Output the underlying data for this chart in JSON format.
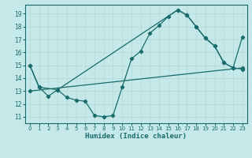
{
  "xlabel": "Humidex (Indice chaleur)",
  "bg_color": "#c5e8e8",
  "line_color": "#1a6b6b",
  "grid_color": "#b0d8d8",
  "xlim": [
    -0.5,
    23.5
  ],
  "ylim": [
    10.5,
    19.7
  ],
  "yticks": [
    11,
    12,
    13,
    14,
    15,
    16,
    17,
    18,
    19
  ],
  "xticks": [
    0,
    1,
    2,
    3,
    4,
    5,
    6,
    7,
    8,
    9,
    10,
    11,
    12,
    13,
    14,
    15,
    16,
    17,
    18,
    19,
    20,
    21,
    22,
    23
  ],
  "line1_x": [
    0,
    1,
    2,
    3,
    4,
    5,
    6,
    7,
    8,
    9,
    10,
    11,
    12,
    13,
    14,
    15,
    16,
    17,
    18,
    19,
    20,
    21,
    22,
    23
  ],
  "line1_y": [
    15.0,
    13.3,
    12.6,
    13.1,
    12.5,
    12.3,
    12.2,
    11.1,
    11.0,
    11.1,
    13.3,
    15.5,
    16.1,
    17.5,
    18.1,
    18.8,
    19.3,
    18.9,
    18.0,
    17.1,
    16.5,
    15.2,
    14.8,
    14.7
  ],
  "line2_x": [
    0,
    1,
    3,
    16,
    17,
    18,
    19,
    20,
    21,
    22,
    23
  ],
  "line2_y": [
    15.0,
    13.3,
    13.1,
    19.3,
    18.9,
    18.0,
    17.1,
    16.5,
    15.2,
    14.8,
    17.2
  ],
  "line3_x": [
    0,
    23
  ],
  "line3_y": [
    13.0,
    14.8
  ]
}
